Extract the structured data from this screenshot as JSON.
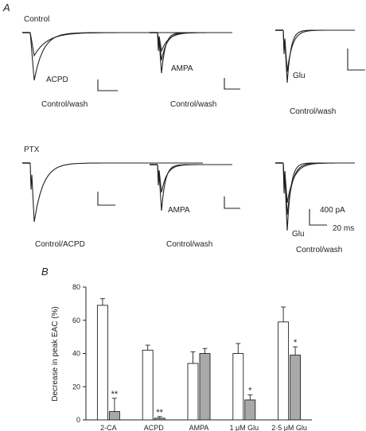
{
  "panel_a": {
    "letter": "A",
    "row_labels": [
      "Control",
      "PTX"
    ],
    "trace_labels": [
      [
        "ACPD",
        "Control/wash"
      ],
      [
        "AMPA",
        "Control/wash"
      ],
      [
        "Glu",
        "Control/wash"
      ],
      [
        "Control/ACPD"
      ],
      [
        "AMPA",
        "Control/wash"
      ],
      [
        "Glu",
        "Control/wash"
      ]
    ],
    "scale_bar": {
      "current": "400 pA",
      "time": "20 ms"
    }
  },
  "panel_b": {
    "letter": "B"
  },
  "chart_data": {
    "type": "bar",
    "ylabel": "Decrease in peak EAC (%)",
    "ylim": [
      0,
      80
    ],
    "yticks": [
      0,
      20,
      40,
      60,
      80
    ],
    "categories": [
      "2-CA",
      "ACPD",
      "AMPA",
      "1 μM Glu",
      "2·5 μM Glu"
    ],
    "series": [
      {
        "fill": "#ffffff",
        "values": [
          69,
          42,
          34,
          40,
          59
        ],
        "errors": [
          4,
          3,
          7,
          6,
          9
        ]
      },
      {
        "fill": "#a9a9a9",
        "values": [
          5,
          1,
          40,
          12,
          39
        ],
        "errors": [
          8,
          1,
          3,
          3,
          5
        ]
      }
    ],
    "annotations": [
      "**",
      "**",
      "",
      "*",
      "*"
    ]
  }
}
